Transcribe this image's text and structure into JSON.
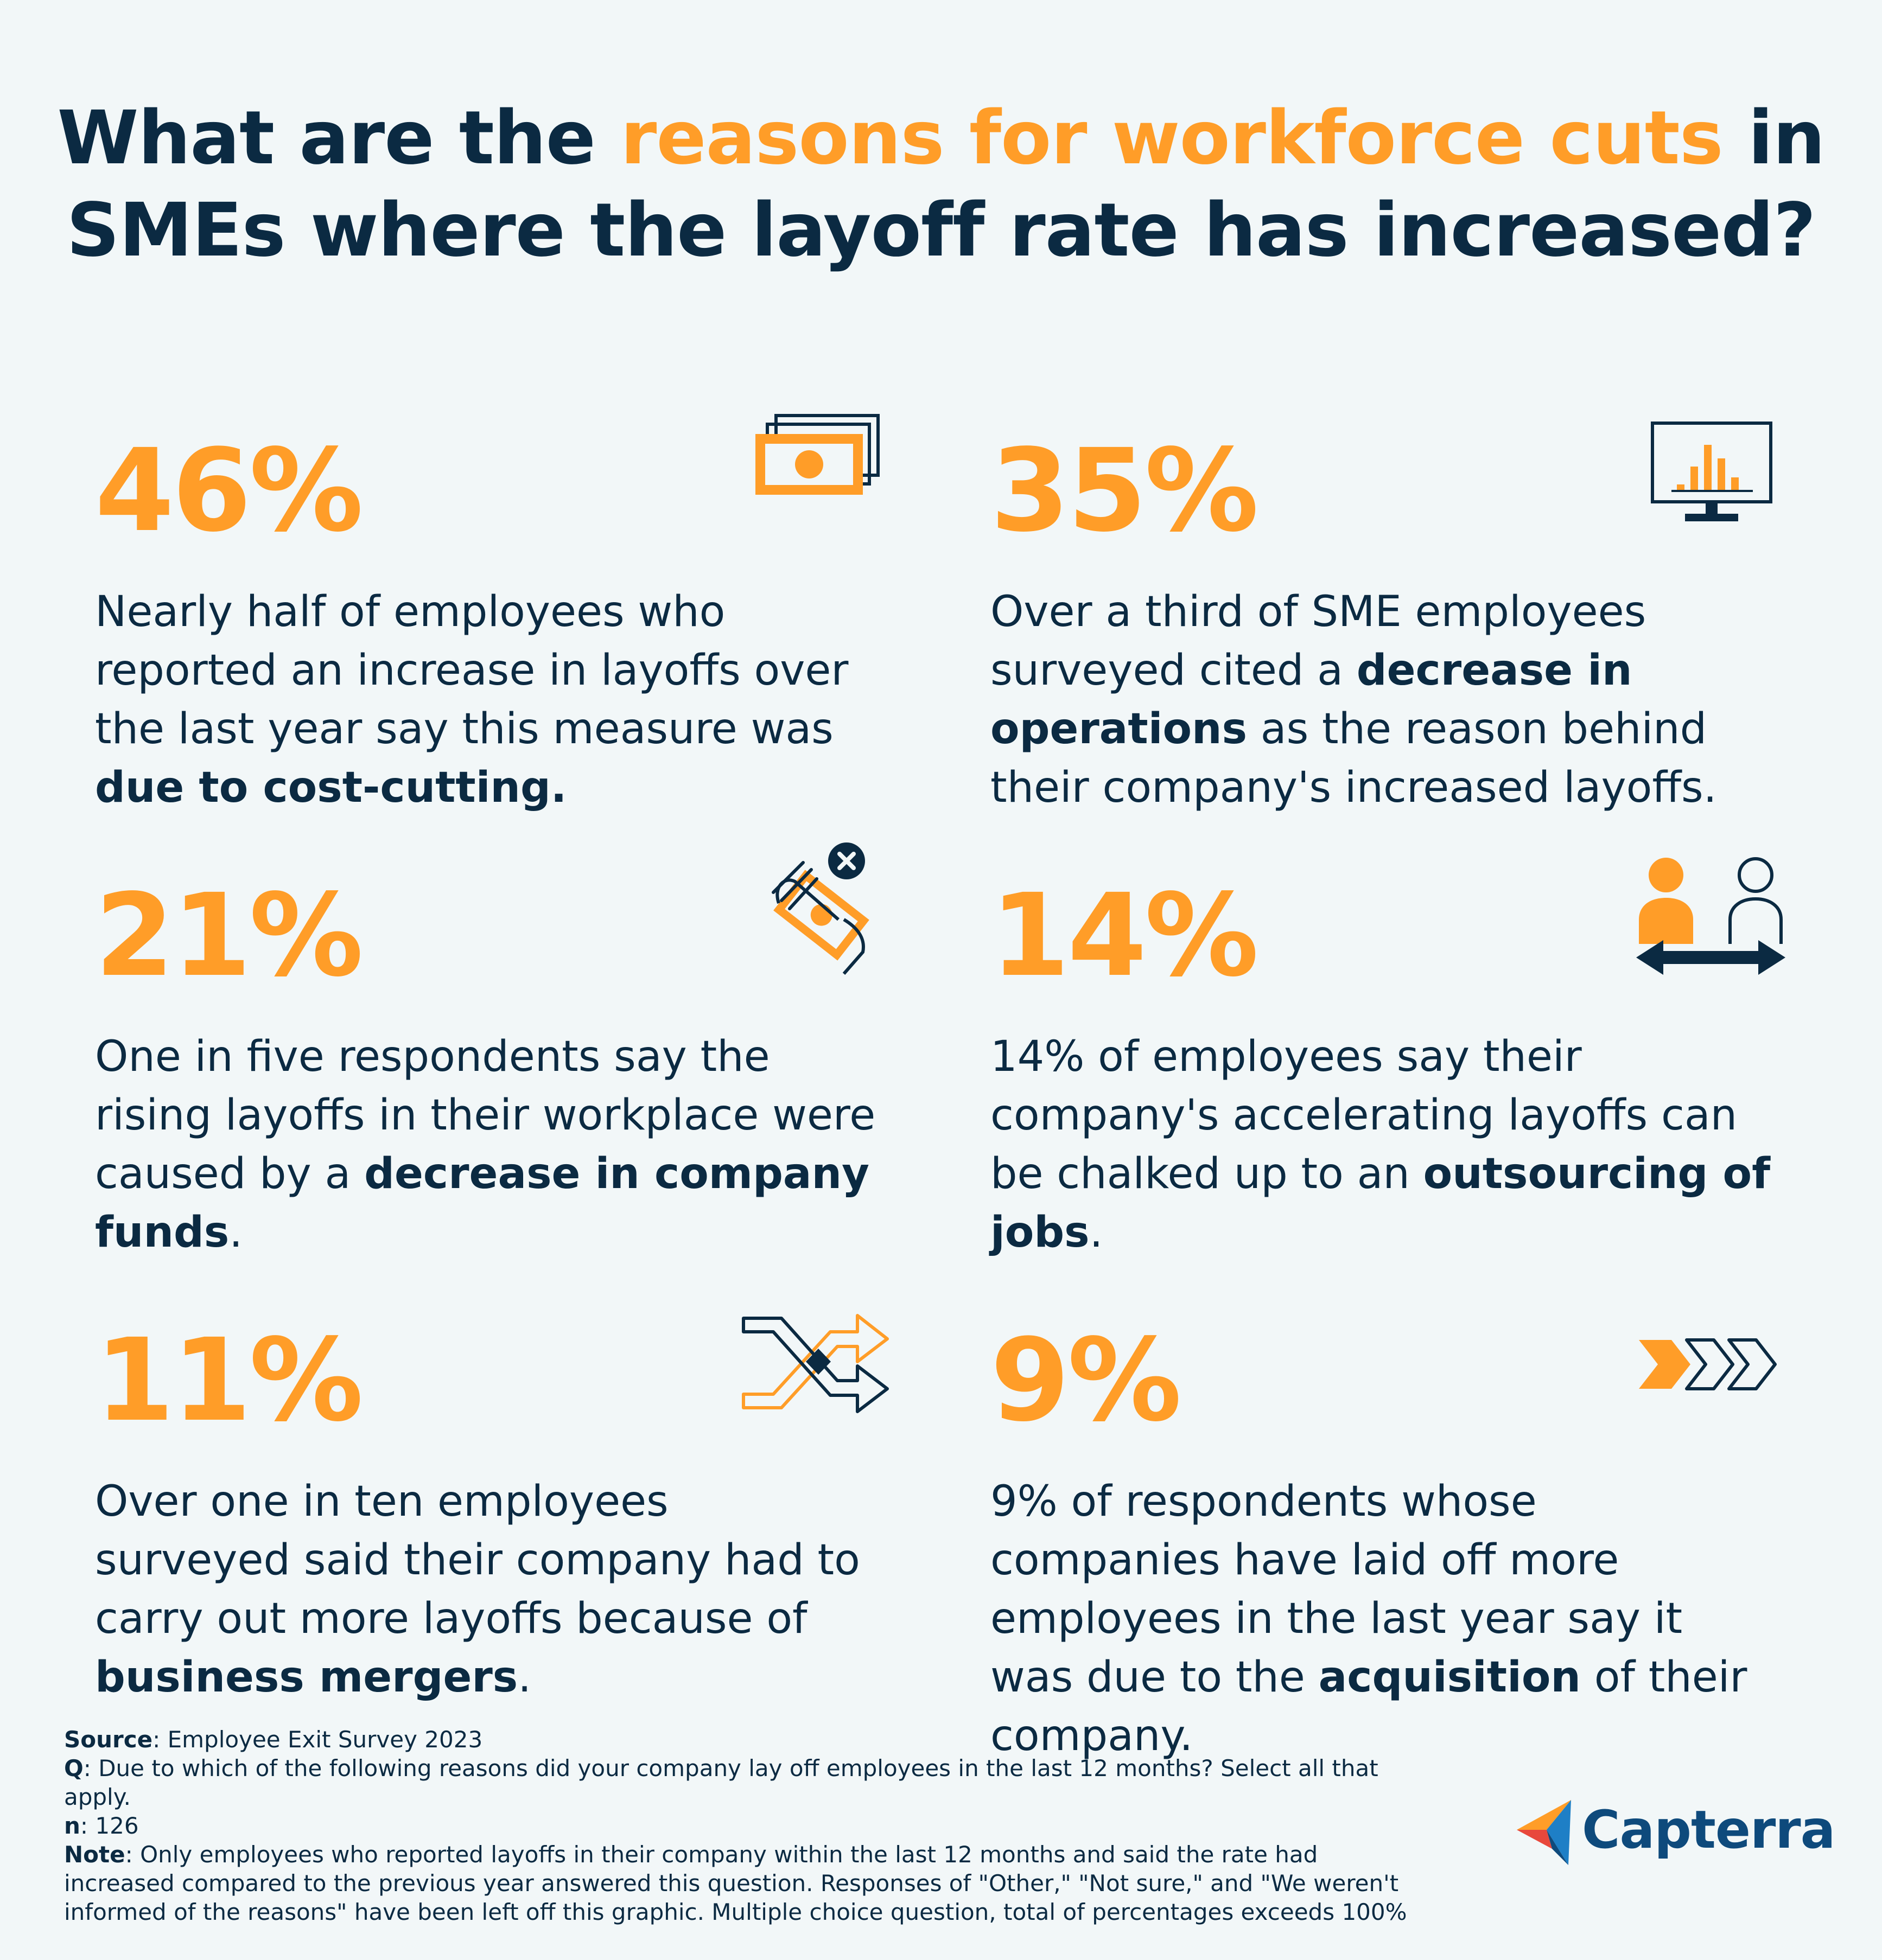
{
  "title": {
    "part1": "What are the ",
    "highlight": "reasons for workforce cuts",
    "part2": " in",
    "line2": "SMEs where the layoff rate has increased?"
  },
  "colors": {
    "accent": "#ff9d28",
    "navy": "#0b2a42",
    "background": "#f2f7f8"
  },
  "chart_data": {
    "type": "table",
    "title": "What are the reasons for workforce cuts in SMEs where the layoff rate has increased?",
    "categories": [
      "cost-cutting",
      "decrease in operations",
      "decrease in company funds",
      "outsourcing of jobs",
      "business mergers",
      "acquisition"
    ],
    "values": [
      46,
      35,
      21,
      14,
      11,
      9
    ],
    "unit": "%"
  },
  "stats": [
    {
      "value": "46%",
      "icon": "money-stack-icon",
      "text_before": "Nearly half of employees who reported an increase in layoffs over the last year say this measure was ",
      "text_bold": "due to cost-cutting.",
      "text_after": ""
    },
    {
      "value": "35%",
      "icon": "monitor-chart-icon",
      "text_before": "Over a third of SME employees surveyed cited a ",
      "text_bold": "decrease in operations",
      "text_after": " as the reason behind their company's increased layoffs."
    },
    {
      "value": "21%",
      "icon": "hand-money-cancel-icon",
      "text_before": "One in five respondents say the rising layoffs in their workplace were caused by a ",
      "text_bold": "decrease in company funds",
      "text_after": "."
    },
    {
      "value": "14%",
      "icon": "people-exchange-icon",
      "text_before": "14% of employees say their company's accelerating layoffs can be chalked up to an ",
      "text_bold": "outsourcing of jobs",
      "text_after": "."
    },
    {
      "value": "11%",
      "icon": "merge-arrows-icon",
      "text_before": "Over one in ten employees surveyed said their company had to carry out more layoffs because of ",
      "text_bold": "business mergers",
      "text_after": "."
    },
    {
      "value": "9%",
      "icon": "chevrons-icon",
      "text_before": "9% of respondents whose companies have laid off more employees in the last year say it was due to the ",
      "text_bold": "acquisition",
      "text_after": " of their company."
    }
  ],
  "footer": {
    "source_label": "Source",
    "source_text": ": Employee Exit Survey 2023",
    "q_label": "Q",
    "q_text": ": Due to which of the following reasons did your company lay off employees in the last 12 months? Select all that apply.",
    "n_label": "n",
    "n_text": ": 126",
    "note_label": "Note",
    "note_text": ": Only employees who reported layoffs in their company within the last 12 months and said the rate had increased compared to the previous year answered this question. Responses of \"Other,\" \"Not sure,\" and \"We weren't informed of the reasons\" have been left off this graphic. Multiple choice question, total of percentages exceeds 100%"
  },
  "logo": {
    "text": "Capterra"
  }
}
